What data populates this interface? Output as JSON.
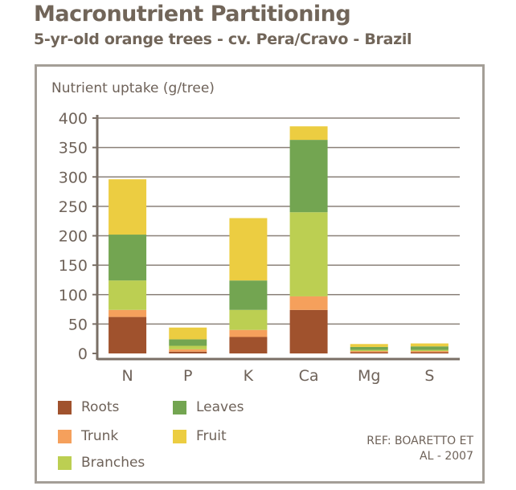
{
  "title": "Macronutrient Partitioning",
  "subtitle": "5-yr-old orange trees - cv. Pera/Cravo - Brazil",
  "reference": [
    "REF: BOARETTO ET",
    "AL - 2007"
  ],
  "chart_data": {
    "type": "bar",
    "stacked": true,
    "ylabel": "Nutrient uptake (g/tree)",
    "ylim": [
      0,
      400
    ],
    "yticks": [
      0,
      50,
      100,
      150,
      200,
      250,
      300,
      350,
      400
    ],
    "grid": true,
    "legend_position": "bottom",
    "categories": [
      "N",
      "P",
      "K",
      "Ca",
      "Mg",
      "S"
    ],
    "series": [
      {
        "name": "Roots",
        "color": "#a0522d",
        "values": [
          62,
          3,
          28,
          74,
          2,
          2
        ]
      },
      {
        "name": "Trunk",
        "color": "#f5a05c",
        "values": [
          12,
          4,
          12,
          23,
          2,
          2
        ]
      },
      {
        "name": "Branches",
        "color": "#bccf52",
        "values": [
          50,
          6,
          34,
          143,
          2,
          2
        ]
      },
      {
        "name": "Leaves",
        "color": "#73a551",
        "values": [
          78,
          11,
          50,
          123,
          5,
          6
        ]
      },
      {
        "name": "Fruit",
        "color": "#eccd41",
        "values": [
          94,
          20,
          106,
          23,
          5,
          5
        ]
      }
    ]
  }
}
